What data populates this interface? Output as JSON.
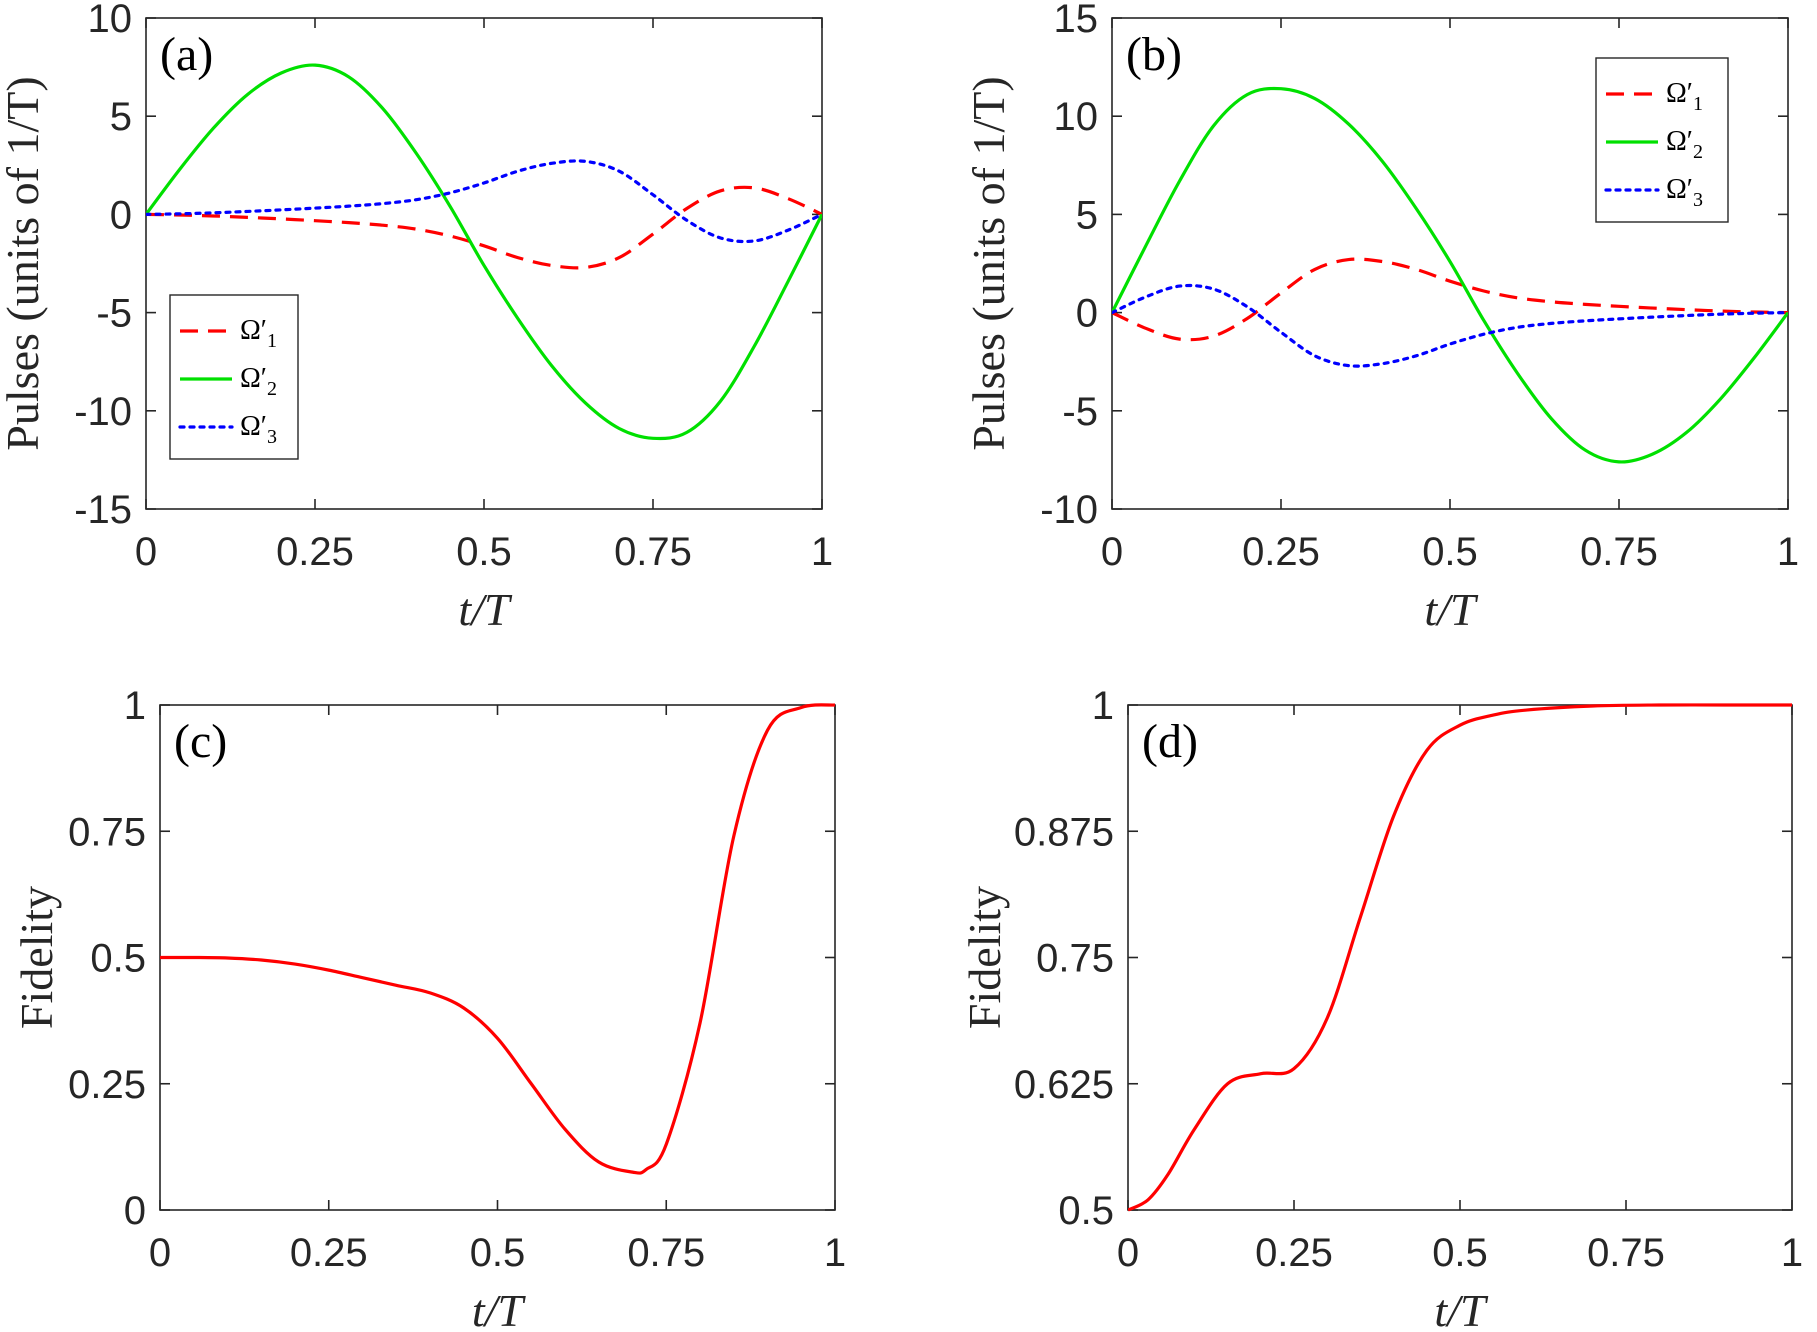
{
  "chart_data": [
    {
      "id": "a",
      "type": "line",
      "panel_label": "(a)",
      "xlabel": "t/T",
      "ylabel": "Pulses (units of 1/T)",
      "xlim": [
        0,
        1
      ],
      "ylim": [
        -15,
        10
      ],
      "xticks": [
        0,
        0.25,
        0.5,
        0.75,
        1
      ],
      "xtick_labels": [
        "0",
        "0.25",
        "0.5",
        "0.75",
        "1"
      ],
      "yticks": [
        -15,
        -10,
        -5,
        0,
        5,
        10
      ],
      "ytick_labels": [
        "-15",
        "-10",
        "-5",
        "0",
        "5",
        "10"
      ],
      "legend_position": "lower-left",
      "series": [
        {
          "name": "Ω′1",
          "color": "#ff0000",
          "dash": "dashed",
          "x": [
            0,
            0.05,
            0.1,
            0.15,
            0.2,
            0.25,
            0.3,
            0.35,
            0.4,
            0.45,
            0.5,
            0.55,
            0.6,
            0.65,
            0.7,
            0.75,
            0.8,
            0.85,
            0.9,
            0.95,
            1
          ],
          "y": [
            0,
            -0.03,
            -0.08,
            -0.15,
            -0.23,
            -0.32,
            -0.42,
            -0.55,
            -0.75,
            -1.1,
            -1.6,
            -2.2,
            -2.6,
            -2.7,
            -2.2,
            -1.0,
            0.3,
            1.2,
            1.35,
            0.8,
            0
          ]
        },
        {
          "name": "Ω′2",
          "color": "#00e000",
          "dash": "solid",
          "x": [
            0,
            0.05,
            0.1,
            0.15,
            0.2,
            0.25,
            0.3,
            0.35,
            0.4,
            0.45,
            0.5,
            0.55,
            0.6,
            0.65,
            0.7,
            0.75,
            0.8,
            0.85,
            0.9,
            0.95,
            1
          ],
          "y": [
            0,
            2.3,
            4.4,
            6.1,
            7.2,
            7.6,
            7.0,
            5.4,
            3.1,
            0.4,
            -2.6,
            -5.3,
            -7.7,
            -9.6,
            -10.9,
            -11.4,
            -11.1,
            -9.5,
            -6.7,
            -3.4,
            0
          ]
        },
        {
          "name": "Ω′3",
          "color": "#0000ff",
          "dash": "dotted",
          "x": [
            0,
            0.05,
            0.1,
            0.15,
            0.2,
            0.25,
            0.3,
            0.35,
            0.4,
            0.45,
            0.5,
            0.55,
            0.6,
            0.65,
            0.7,
            0.75,
            0.8,
            0.85,
            0.9,
            0.95,
            1
          ],
          "y": [
            0,
            0.03,
            0.08,
            0.15,
            0.23,
            0.32,
            0.42,
            0.55,
            0.75,
            1.1,
            1.6,
            2.2,
            2.6,
            2.7,
            2.2,
            1.0,
            -0.3,
            -1.2,
            -1.35,
            -0.8,
            0
          ]
        }
      ]
    },
    {
      "id": "b",
      "type": "line",
      "panel_label": "(b)",
      "xlabel": "t/T",
      "ylabel": "Pulses (units of 1/T)",
      "xlim": [
        0,
        1
      ],
      "ylim": [
        -10,
        15
      ],
      "xticks": [
        0,
        0.25,
        0.5,
        0.75,
        1
      ],
      "xtick_labels": [
        "0",
        "0.25",
        "0.5",
        "0.75",
        "1"
      ],
      "yticks": [
        -10,
        -5,
        0,
        5,
        10,
        15
      ],
      "ytick_labels": [
        "-10",
        "-5",
        "0",
        "5",
        "10",
        "15"
      ],
      "legend_position": "top-right",
      "series": [
        {
          "name": "Ω′1",
          "color": "#ff0000",
          "dash": "dashed",
          "x": [
            0,
            0.05,
            0.1,
            0.15,
            0.2,
            0.25,
            0.3,
            0.35,
            0.4,
            0.45,
            0.5,
            0.55,
            0.6,
            0.65,
            0.7,
            0.75,
            0.8,
            0.85,
            0.9,
            0.95,
            1
          ],
          "y": [
            0,
            -0.8,
            -1.35,
            -1.2,
            -0.3,
            1.0,
            2.2,
            2.7,
            2.6,
            2.2,
            1.6,
            1.1,
            0.75,
            0.55,
            0.42,
            0.32,
            0.23,
            0.15,
            0.08,
            0.03,
            0
          ]
        },
        {
          "name": "Ω′2",
          "color": "#00e000",
          "dash": "solid",
          "x": [
            0,
            0.05,
            0.1,
            0.15,
            0.2,
            0.25,
            0.3,
            0.35,
            0.4,
            0.45,
            0.5,
            0.55,
            0.6,
            0.65,
            0.7,
            0.75,
            0.8,
            0.85,
            0.9,
            0.95,
            1
          ],
          "y": [
            0,
            3.4,
            6.7,
            9.5,
            11.1,
            11.4,
            10.9,
            9.6,
            7.7,
            5.3,
            2.6,
            -0.4,
            -3.1,
            -5.4,
            -7.0,
            -7.6,
            -7.2,
            -6.1,
            -4.4,
            -2.3,
            0
          ]
        },
        {
          "name": "Ω′3",
          "color": "#0000ff",
          "dash": "dotted",
          "x": [
            0,
            0.05,
            0.1,
            0.15,
            0.2,
            0.25,
            0.3,
            0.35,
            0.4,
            0.45,
            0.5,
            0.55,
            0.6,
            0.65,
            0.7,
            0.75,
            0.8,
            0.85,
            0.9,
            0.95,
            1
          ],
          "y": [
            0,
            0.8,
            1.35,
            1.2,
            0.3,
            -1.0,
            -2.2,
            -2.7,
            -2.6,
            -2.2,
            -1.6,
            -1.1,
            -0.75,
            -0.55,
            -0.42,
            -0.32,
            -0.23,
            -0.15,
            -0.08,
            -0.03,
            0
          ]
        }
      ]
    },
    {
      "id": "c",
      "type": "line",
      "panel_label": "(c)",
      "xlabel": "t/T",
      "ylabel": "Fidelity",
      "xlim": [
        0,
        1
      ],
      "ylim": [
        0,
        1
      ],
      "xticks": [
        0,
        0.25,
        0.5,
        0.75,
        1
      ],
      "xtick_labels": [
        "0",
        "0.25",
        "0.5",
        "0.75",
        "1"
      ],
      "yticks": [
        0,
        0.25,
        0.5,
        0.75,
        1
      ],
      "ytick_labels": [
        "0",
        "0.25",
        "0.5",
        "0.75",
        "1"
      ],
      "series": [
        {
          "color": "#ff0000",
          "dash": "solid",
          "x": [
            0,
            0.05,
            0.1,
            0.15,
            0.2,
            0.25,
            0.3,
            0.35,
            0.4,
            0.45,
            0.5,
            0.55,
            0.6,
            0.65,
            0.7,
            0.72,
            0.75,
            0.8,
            0.85,
            0.9,
            0.95,
            1
          ],
          "y": [
            0.5,
            0.5,
            0.499,
            0.495,
            0.487,
            0.475,
            0.46,
            0.445,
            0.43,
            0.4,
            0.34,
            0.25,
            0.16,
            0.095,
            0.075,
            0.08,
            0.13,
            0.37,
            0.74,
            0.95,
            0.995,
            1
          ]
        }
      ]
    },
    {
      "id": "d",
      "type": "line",
      "panel_label": "(d)",
      "xlabel": "t/T",
      "ylabel": "Fidelity",
      "xlim": [
        0,
        1
      ],
      "ylim": [
        0.5,
        1
      ],
      "xticks": [
        0,
        0.25,
        0.5,
        0.75,
        1
      ],
      "xtick_labels": [
        "0",
        "0.25",
        "0.5",
        "0.75",
        "1"
      ],
      "yticks": [
        0.5,
        0.625,
        0.75,
        0.875,
        1
      ],
      "ytick_labels": [
        "0.5",
        "0.625",
        "0.75",
        "0.875",
        "1"
      ],
      "series": [
        {
          "color": "#ff0000",
          "dash": "solid",
          "x": [
            0,
            0.03,
            0.06,
            0.1,
            0.15,
            0.2,
            0.25,
            0.3,
            0.35,
            0.4,
            0.45,
            0.5,
            0.55,
            0.6,
            0.7,
            0.8,
            0.9,
            1
          ],
          "y": [
            0.5,
            0.51,
            0.535,
            0.58,
            0.625,
            0.635,
            0.64,
            0.69,
            0.79,
            0.89,
            0.955,
            0.98,
            0.99,
            0.995,
            0.999,
            1,
            1,
            1
          ]
        }
      ]
    }
  ]
}
